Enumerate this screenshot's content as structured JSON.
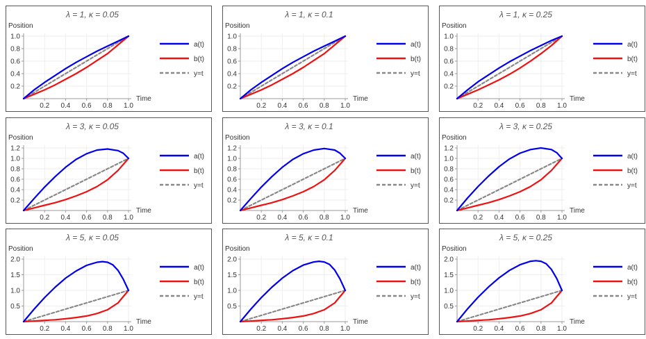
{
  "colors": {
    "a": "#0000ee",
    "b": "#ee1111",
    "ref": "#888888",
    "frame": "#555555",
    "grid": "#eeeeee",
    "text": "#333333",
    "title": "#555555"
  },
  "chart_data": [
    {
      "type": "line",
      "lambda": 1,
      "kappa": 0.05,
      "title": "λ = 1, κ = 0.05",
      "ylabel": "Position",
      "xlabel": "Time",
      "xlim": [
        0,
        1
      ],
      "ylim": [
        0,
        1.0
      ],
      "xticks": [
        "0.2",
        "0.4",
        "0.6",
        "0.8",
        "1.0"
      ],
      "yticks": [
        "0.2",
        "0.4",
        "0.6",
        "0.8",
        "1.0"
      ],
      "legend": [
        "a(t)",
        "b(t)",
        "y=t"
      ],
      "legend_position": "right",
      "series": [
        {
          "name": "a(t)",
          "x": [
            0,
            0.1,
            0.2,
            0.3,
            0.4,
            0.5,
            0.6,
            0.7,
            0.8,
            0.9,
            1.0
          ],
          "y": [
            0,
            0.14,
            0.26,
            0.37,
            0.48,
            0.58,
            0.67,
            0.76,
            0.84,
            0.92,
            1.0
          ]
        },
        {
          "name": "b(t)",
          "x": [
            0,
            0.1,
            0.2,
            0.3,
            0.4,
            0.5,
            0.6,
            0.7,
            0.8,
            0.9,
            1.0
          ],
          "y": [
            0,
            0.07,
            0.14,
            0.22,
            0.31,
            0.4,
            0.5,
            0.61,
            0.72,
            0.86,
            1.0
          ]
        },
        {
          "name": "y=t",
          "x": [
            0,
            1
          ],
          "y": [
            0,
            1
          ]
        }
      ]
    },
    {
      "type": "line",
      "lambda": 1,
      "kappa": 0.1,
      "title": "λ = 1, κ = 0.1",
      "ylabel": "Position",
      "xlabel": "Time",
      "xlim": [
        0,
        1
      ],
      "ylim": [
        0,
        1.0
      ],
      "xticks": [
        "0.2",
        "0.4",
        "0.6",
        "0.8",
        "1.0"
      ],
      "yticks": [
        "0.2",
        "0.4",
        "0.6",
        "0.8",
        "1.0"
      ],
      "legend": [
        "a(t)",
        "b(t)",
        "y=t"
      ],
      "legend_position": "right",
      "series": [
        {
          "name": "a(t)",
          "x": [
            0,
            0.1,
            0.2,
            0.3,
            0.4,
            0.5,
            0.6,
            0.7,
            0.8,
            0.9,
            1.0
          ],
          "y": [
            0,
            0.14,
            0.26,
            0.37,
            0.48,
            0.58,
            0.67,
            0.76,
            0.84,
            0.92,
            1.0
          ]
        },
        {
          "name": "b(t)",
          "x": [
            0,
            0.1,
            0.2,
            0.3,
            0.4,
            0.5,
            0.6,
            0.7,
            0.8,
            0.9,
            1.0
          ],
          "y": [
            0,
            0.07,
            0.14,
            0.22,
            0.31,
            0.4,
            0.5,
            0.61,
            0.72,
            0.86,
            1.0
          ]
        },
        {
          "name": "y=t",
          "x": [
            0,
            1
          ],
          "y": [
            0,
            1
          ]
        }
      ]
    },
    {
      "type": "line",
      "lambda": 1,
      "kappa": 0.25,
      "title": "λ = 1, κ = 0.25",
      "ylabel": "Position",
      "xlabel": "Time",
      "xlim": [
        0,
        1
      ],
      "ylim": [
        0,
        1.0
      ],
      "xticks": [
        "0.2",
        "0.4",
        "0.6",
        "0.8",
        "1.0"
      ],
      "yticks": [
        "0.2",
        "0.4",
        "0.6",
        "0.8",
        "1.0"
      ],
      "legend": [
        "a(t)",
        "b(t)",
        "y=t"
      ],
      "legend_position": "right",
      "series": [
        {
          "name": "a(t)",
          "x": [
            0,
            0.1,
            0.2,
            0.3,
            0.4,
            0.5,
            0.6,
            0.7,
            0.8,
            0.9,
            1.0
          ],
          "y": [
            0,
            0.14,
            0.27,
            0.38,
            0.49,
            0.59,
            0.68,
            0.77,
            0.85,
            0.93,
            1.0
          ]
        },
        {
          "name": "b(t)",
          "x": [
            0,
            0.1,
            0.2,
            0.3,
            0.4,
            0.5,
            0.6,
            0.7,
            0.8,
            0.9,
            1.0
          ],
          "y": [
            0,
            0.07,
            0.14,
            0.22,
            0.3,
            0.39,
            0.49,
            0.6,
            0.72,
            0.85,
            1.0
          ]
        },
        {
          "name": "y=t",
          "x": [
            0,
            1
          ],
          "y": [
            0,
            1
          ]
        }
      ]
    },
    {
      "type": "line",
      "lambda": 3,
      "kappa": 0.05,
      "title": "λ = 3, κ = 0.05",
      "ylabel": "Position",
      "xlabel": "Time",
      "xlim": [
        0,
        1
      ],
      "ylim": [
        0,
        1.2
      ],
      "xticks": [
        "0.2",
        "0.4",
        "0.6",
        "0.8",
        "1.0"
      ],
      "yticks": [
        "0.2",
        "0.4",
        "0.6",
        "0.8",
        "1.0",
        "1.2"
      ],
      "legend": [
        "a(t)",
        "b(t)",
        "y=t"
      ],
      "legend_position": "right",
      "series": [
        {
          "name": "a(t)",
          "x": [
            0,
            0.1,
            0.2,
            0.3,
            0.4,
            0.5,
            0.6,
            0.7,
            0.8,
            0.9,
            0.95,
            1.0
          ],
          "y": [
            0,
            0.23,
            0.45,
            0.65,
            0.83,
            0.98,
            1.09,
            1.16,
            1.18,
            1.15,
            1.1,
            1.0
          ]
        },
        {
          "name": "b(t)",
          "x": [
            0,
            0.1,
            0.2,
            0.3,
            0.4,
            0.5,
            0.6,
            0.7,
            0.8,
            0.9,
            1.0
          ],
          "y": [
            0,
            0.05,
            0.1,
            0.15,
            0.21,
            0.28,
            0.36,
            0.46,
            0.59,
            0.77,
            1.0
          ]
        },
        {
          "name": "y=t",
          "x": [
            0,
            1
          ],
          "y": [
            0,
            1
          ]
        }
      ]
    },
    {
      "type": "line",
      "lambda": 3,
      "kappa": 0.1,
      "title": "λ = 3, κ = 0.1",
      "ylabel": "Position",
      "xlabel": "Time",
      "xlim": [
        0,
        1
      ],
      "ylim": [
        0,
        1.2
      ],
      "xticks": [
        "0.2",
        "0.4",
        "0.6",
        "0.8",
        "1.0"
      ],
      "yticks": [
        "0.2",
        "0.4",
        "0.6",
        "0.8",
        "1.0",
        "1.2"
      ],
      "legend": [
        "a(t)",
        "b(t)",
        "y=t"
      ],
      "legend_position": "right",
      "series": [
        {
          "name": "a(t)",
          "x": [
            0,
            0.1,
            0.2,
            0.3,
            0.4,
            0.5,
            0.6,
            0.7,
            0.8,
            0.9,
            0.95,
            1.0
          ],
          "y": [
            0,
            0.23,
            0.45,
            0.65,
            0.83,
            0.98,
            1.09,
            1.16,
            1.19,
            1.16,
            1.1,
            1.0
          ]
        },
        {
          "name": "b(t)",
          "x": [
            0,
            0.1,
            0.2,
            0.3,
            0.4,
            0.5,
            0.6,
            0.7,
            0.8,
            0.9,
            1.0
          ],
          "y": [
            0,
            0.05,
            0.1,
            0.15,
            0.21,
            0.28,
            0.36,
            0.46,
            0.59,
            0.77,
            1.0
          ]
        },
        {
          "name": "y=t",
          "x": [
            0,
            1
          ],
          "y": [
            0,
            1
          ]
        }
      ]
    },
    {
      "type": "line",
      "lambda": 3,
      "kappa": 0.25,
      "title": "λ = 3, κ = 0.25",
      "ylabel": "Position",
      "xlabel": "Time",
      "xlim": [
        0,
        1
      ],
      "ylim": [
        0,
        1.2
      ],
      "xticks": [
        "0.2",
        "0.4",
        "0.6",
        "0.8",
        "1.0"
      ],
      "yticks": [
        "0.2",
        "0.4",
        "0.6",
        "0.8",
        "1.0",
        "1.2"
      ],
      "legend": [
        "a(t)",
        "b(t)",
        "y=t"
      ],
      "legend_position": "right",
      "series": [
        {
          "name": "a(t)",
          "x": [
            0,
            0.1,
            0.2,
            0.3,
            0.4,
            0.5,
            0.6,
            0.7,
            0.8,
            0.9,
            0.95,
            1.0
          ],
          "y": [
            0,
            0.24,
            0.46,
            0.66,
            0.84,
            0.99,
            1.1,
            1.17,
            1.2,
            1.17,
            1.11,
            1.0
          ]
        },
        {
          "name": "b(t)",
          "x": [
            0,
            0.1,
            0.2,
            0.3,
            0.4,
            0.5,
            0.6,
            0.7,
            0.8,
            0.9,
            1.0
          ],
          "y": [
            0,
            0.05,
            0.1,
            0.15,
            0.21,
            0.28,
            0.36,
            0.46,
            0.59,
            0.77,
            1.0
          ]
        },
        {
          "name": "y=t",
          "x": [
            0,
            1
          ],
          "y": [
            0,
            1
          ]
        }
      ]
    },
    {
      "type": "line",
      "lambda": 5,
      "kappa": 0.05,
      "title": "λ = 5, κ = 0.05",
      "ylabel": "Position",
      "xlabel": "Time",
      "xlim": [
        0,
        1
      ],
      "ylim": [
        0,
        2.0
      ],
      "xticks": [
        "0.2",
        "0.4",
        "0.6",
        "0.8",
        "1.0"
      ],
      "yticks": [
        "0.5",
        "1.0",
        "1.5",
        "2.0"
      ],
      "legend": [
        "a(t)",
        "b(t)",
        "y=t"
      ],
      "legend_position": "right",
      "series": [
        {
          "name": "a(t)",
          "x": [
            0,
            0.1,
            0.2,
            0.3,
            0.4,
            0.5,
            0.6,
            0.7,
            0.75,
            0.8,
            0.85,
            0.9,
            0.95,
            1.0
          ],
          "y": [
            0,
            0.4,
            0.77,
            1.1,
            1.39,
            1.62,
            1.8,
            1.9,
            1.92,
            1.9,
            1.82,
            1.64,
            1.36,
            1.0
          ]
        },
        {
          "name": "b(t)",
          "x": [
            0,
            0.1,
            0.2,
            0.3,
            0.4,
            0.5,
            0.6,
            0.7,
            0.8,
            0.9,
            1.0
          ],
          "y": [
            0,
            0.02,
            0.04,
            0.06,
            0.09,
            0.13,
            0.18,
            0.26,
            0.38,
            0.6,
            1.0
          ]
        },
        {
          "name": "y=t",
          "x": [
            0,
            1
          ],
          "y": [
            0,
            1
          ]
        }
      ]
    },
    {
      "type": "line",
      "lambda": 5,
      "kappa": 0.1,
      "title": "λ = 5, κ = 0.1",
      "ylabel": "Position",
      "xlabel": "Time",
      "xlim": [
        0,
        1
      ],
      "ylim": [
        0,
        2.0
      ],
      "xticks": [
        "0.2",
        "0.4",
        "0.6",
        "0.8",
        "1.0"
      ],
      "yticks": [
        "0.5",
        "1.0",
        "1.5",
        "2.0"
      ],
      "legend": [
        "a(t)",
        "b(t)",
        "y=t"
      ],
      "legend_position": "right",
      "series": [
        {
          "name": "a(t)",
          "x": [
            0,
            0.1,
            0.2,
            0.3,
            0.4,
            0.5,
            0.6,
            0.7,
            0.75,
            0.8,
            0.85,
            0.9,
            0.95,
            1.0
          ],
          "y": [
            0,
            0.4,
            0.77,
            1.1,
            1.39,
            1.63,
            1.81,
            1.91,
            1.93,
            1.91,
            1.83,
            1.65,
            1.37,
            1.0
          ]
        },
        {
          "name": "b(t)",
          "x": [
            0,
            0.1,
            0.2,
            0.3,
            0.4,
            0.5,
            0.6,
            0.7,
            0.8,
            0.9,
            1.0
          ],
          "y": [
            0,
            0.02,
            0.04,
            0.06,
            0.09,
            0.13,
            0.18,
            0.26,
            0.38,
            0.6,
            1.0
          ]
        },
        {
          "name": "y=t",
          "x": [
            0,
            1
          ],
          "y": [
            0,
            1
          ]
        }
      ]
    },
    {
      "type": "line",
      "lambda": 5,
      "kappa": 0.25,
      "title": "λ = 5, κ = 0.25",
      "ylabel": "Position",
      "xlabel": "Time",
      "xlim": [
        0,
        1
      ],
      "ylim": [
        0,
        2.0
      ],
      "xticks": [
        "0.2",
        "0.4",
        "0.6",
        "0.8",
        "1.0"
      ],
      "yticks": [
        "0.5",
        "1.0",
        "1.5",
        "2.0"
      ],
      "legend": [
        "a(t)",
        "b(t)",
        "y=t"
      ],
      "legend_position": "right",
      "series": [
        {
          "name": "a(t)",
          "x": [
            0,
            0.1,
            0.2,
            0.3,
            0.4,
            0.5,
            0.6,
            0.7,
            0.75,
            0.8,
            0.85,
            0.9,
            0.95,
            1.0
          ],
          "y": [
            0,
            0.41,
            0.78,
            1.11,
            1.4,
            1.64,
            1.82,
            1.93,
            1.95,
            1.93,
            1.85,
            1.67,
            1.38,
            1.0
          ]
        },
        {
          "name": "b(t)",
          "x": [
            0,
            0.1,
            0.2,
            0.3,
            0.4,
            0.5,
            0.6,
            0.7,
            0.8,
            0.9,
            1.0
          ],
          "y": [
            0,
            0.02,
            0.04,
            0.06,
            0.09,
            0.13,
            0.18,
            0.26,
            0.38,
            0.6,
            1.0
          ]
        },
        {
          "name": "y=t",
          "x": [
            0,
            1
          ],
          "y": [
            0,
            1
          ]
        }
      ]
    }
  ]
}
